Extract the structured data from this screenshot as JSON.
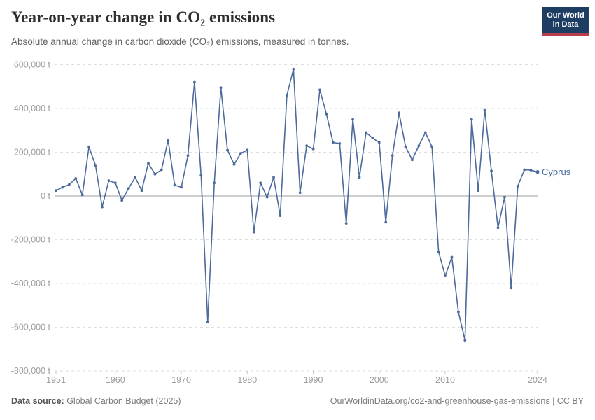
{
  "header": {
    "title": "Year-on-year change in CO₂ emissions",
    "subtitle": "Absolute annual change in carbon dioxide (CO₂) emissions, measured in tonnes.",
    "logo": {
      "line1": "Our World",
      "line2": "in Data"
    }
  },
  "chart_data": {
    "type": "line",
    "title": "Year-on-year change in CO₂ emissions",
    "entity_label": "Cyprus",
    "unit_suffix": " t",
    "line_color": "#4c6a9c",
    "grid": true,
    "legend_position": "end-of-line-label",
    "xlabel": "",
    "ylabel": "",
    "ylim": [
      -800000,
      620000
    ],
    "xlim": [
      1950.7,
      2024
    ],
    "x_ticks": [
      1951,
      1960,
      1970,
      1980,
      1990,
      2000,
      2010,
      2024
    ],
    "y_ticks": [
      600000,
      400000,
      200000,
      0,
      -200000,
      -400000,
      -600000,
      -800000
    ],
    "x": [
      1951,
      1952,
      1953,
      1954,
      1955,
      1956,
      1957,
      1958,
      1959,
      1960,
      1961,
      1962,
      1963,
      1964,
      1965,
      1966,
      1967,
      1968,
      1969,
      1970,
      1971,
      1972,
      1973,
      1974,
      1975,
      1976,
      1977,
      1978,
      1979,
      1980,
      1981,
      1982,
      1983,
      1984,
      1985,
      1986,
      1987,
      1988,
      1989,
      1990,
      1991,
      1992,
      1993,
      1994,
      1995,
      1996,
      1997,
      1998,
      1999,
      2000,
      2001,
      2002,
      2003,
      2004,
      2005,
      2006,
      2007,
      2008,
      2009,
      2010,
      2011,
      2012,
      2013,
      2014,
      2015,
      2016,
      2017,
      2018,
      2019,
      2020,
      2021,
      2022,
      2023,
      2024
    ],
    "values": [
      25000,
      40000,
      52000,
      80000,
      5000,
      225000,
      140000,
      -50000,
      70000,
      60000,
      -20000,
      35000,
      85000,
      25000,
      150000,
      100000,
      120000,
      255000,
      50000,
      40000,
      185000,
      520000,
      95000,
      -575000,
      60000,
      495000,
      210000,
      145000,
      195000,
      210000,
      -165000,
      60000,
      -5000,
      85000,
      -90000,
      460000,
      580000,
      15000,
      230000,
      215000,
      485000,
      375000,
      245000,
      240000,
      -125000,
      350000,
      85000,
      290000,
      265000,
      245000,
      -120000,
      185000,
      380000,
      225000,
      165000,
      230000,
      290000,
      225000,
      -255000,
      -365000,
      -280000,
      -530000,
      -660000,
      350000,
      25000,
      395000,
      115000,
      -145000,
      -5000,
      -420000,
      45000,
      120000,
      118000,
      110000
    ]
  },
  "footer": {
    "datasource_label": "Data source:",
    "datasource_value": " Global Carbon Budget (2025)",
    "attribution": "OurWorldinData.org/co2-and-greenhouse-gas-emissions | CC BY"
  }
}
